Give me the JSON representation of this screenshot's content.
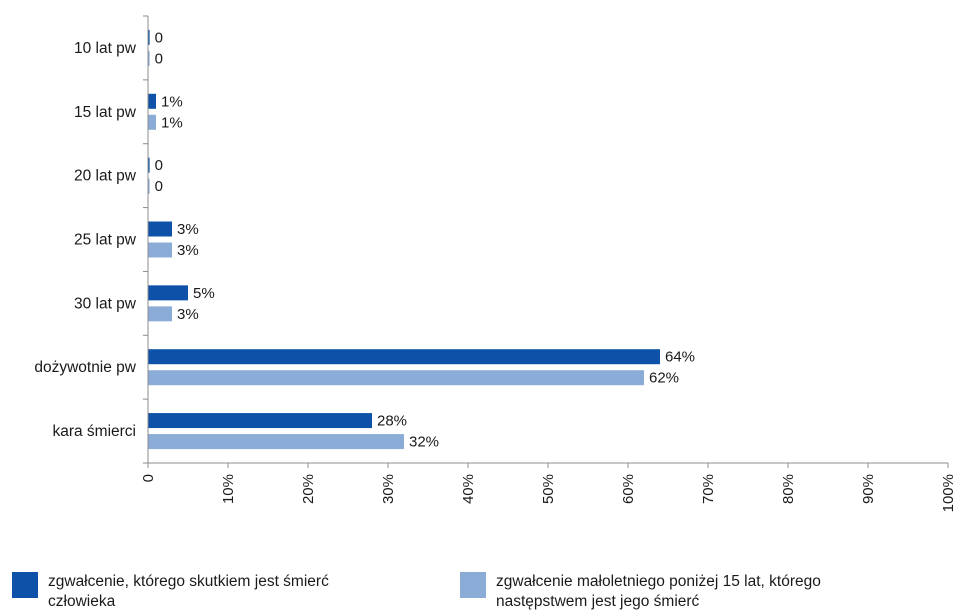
{
  "chart_data": {
    "type": "bar",
    "orientation": "horizontal",
    "categories": [
      "10 lat pw",
      "15 lat pw",
      "20 lat pw",
      "25 lat pw",
      "30 lat pw",
      "dożywotnie pw",
      "kara śmierci"
    ],
    "series": [
      {
        "name": "zgwałcenie, którego skutkiem jest śmierć człowieka",
        "color": "#0d52a8",
        "values": [
          0,
          1,
          0,
          3,
          5,
          64,
          28
        ],
        "labels": [
          "0",
          "1%",
          "0",
          "3%",
          "5%",
          "64%",
          "28%"
        ]
      },
      {
        "name": "zgwałcenie małoletniego poniżej 15 lat, którego następstwem jest jego śmierć",
        "color": "#8cacd8",
        "values": [
          0,
          1,
          0,
          3,
          3,
          62,
          32
        ],
        "labels": [
          "0",
          "1%",
          "0",
          "3%",
          "3%",
          "62%",
          "32%"
        ]
      }
    ],
    "xlim": [
      0,
      100
    ],
    "x_ticks": [
      "0",
      "10%",
      "20%",
      "30%",
      "40%",
      "50%",
      "60%",
      "70%",
      "80%",
      "90%",
      "100%"
    ],
    "grid": false,
    "legend_position": "bottom"
  }
}
